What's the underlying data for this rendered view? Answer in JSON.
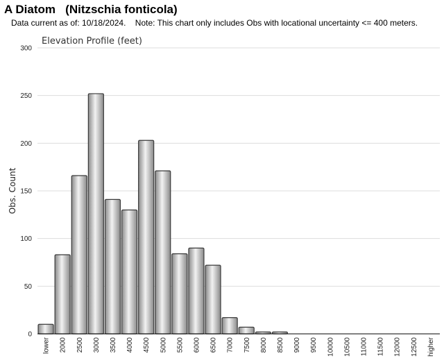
{
  "page": {
    "title": "A Diatom   (Nitzschia fonticola)",
    "note": "Data current as of: 10/18/2024.    Note: This chart only includes Obs with locational uncertainty <= 400 meters."
  },
  "chart_data": {
    "type": "bar",
    "title": "Elevation Profile (feet)",
    "xlabel": "",
    "ylabel": "Obs. Count",
    "ylim": [
      0,
      300
    ],
    "yticks": [
      0,
      50,
      100,
      150,
      200,
      250,
      300
    ],
    "grid": true,
    "categories": [
      "lower",
      "2000",
      "2500",
      "3000",
      "3500",
      "4000",
      "4500",
      "5000",
      "5500",
      "6000",
      "6500",
      "7000",
      "7500",
      "8000",
      "8500",
      "9000",
      "9500",
      "10000",
      "10500",
      "11000",
      "11500",
      "12000",
      "12500",
      "higher"
    ],
    "values": [
      10,
      83,
      166,
      252,
      141,
      130,
      203,
      171,
      84,
      90,
      72,
      17,
      7,
      2,
      2,
      0,
      0,
      0,
      0,
      0,
      0,
      0,
      0,
      0
    ],
    "colors": {
      "bar_light": "#f2f2f2",
      "bar_dark": "#8a8a8a",
      "bar_stroke": "#3a3a3a",
      "grid": "#dddddd",
      "axis": "#000000"
    }
  }
}
